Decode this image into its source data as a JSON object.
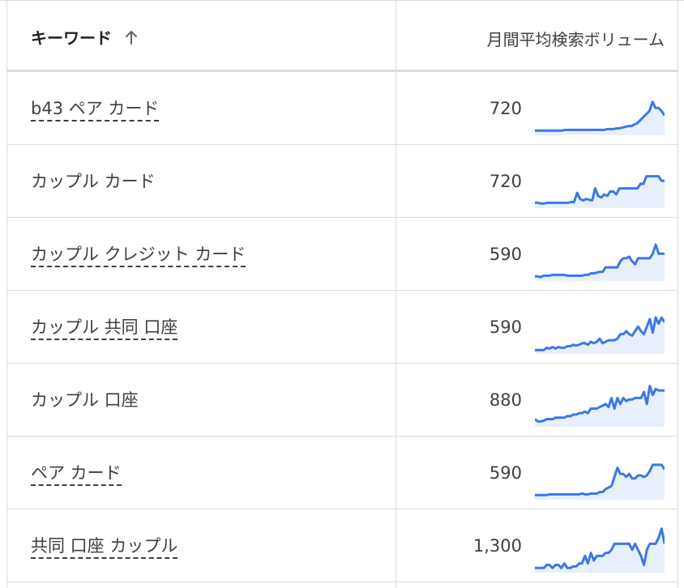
{
  "header": {
    "keyword_label": "キーワード",
    "volume_label": "月間平均検索ボリューム",
    "sort_icon": "arrow-up-icon"
  },
  "colors": {
    "trend_line": "#3b78e7",
    "trend_fill": "#e8f0fe",
    "border": "#dadce0"
  },
  "rows": [
    {
      "keyword": "b43 ペア カード",
      "volume": "720",
      "linked": true,
      "trend": [
        4,
        4,
        4,
        4,
        4,
        4,
        4,
        4,
        4,
        4,
        5,
        5,
        5,
        5,
        5,
        5,
        5,
        5,
        5,
        5,
        5,
        5,
        5,
        5,
        6,
        6,
        6,
        7,
        7,
        8,
        9,
        10,
        10,
        12,
        14,
        18,
        22,
        26,
        30,
        42,
        34,
        34,
        30,
        24
      ]
    },
    {
      "keyword": "カップル カード",
      "volume": "720",
      "linked": false,
      "trend": [
        5,
        5,
        4,
        4,
        5,
        5,
        5,
        5,
        5,
        5,
        5,
        5,
        6,
        6,
        18,
        10,
        8,
        10,
        9,
        8,
        24,
        14,
        12,
        16,
        14,
        20,
        20,
        16,
        24,
        24,
        24,
        24,
        24,
        24,
        24,
        30,
        30,
        40,
        40,
        40,
        40,
        40,
        34,
        34
      ]
    },
    {
      "keyword": "カップル クレジット カード",
      "volume": "590",
      "linked": true,
      "trend": [
        4,
        4,
        3,
        5,
        5,
        5,
        6,
        6,
        6,
        6,
        6,
        5,
        5,
        5,
        5,
        5,
        5,
        6,
        6,
        8,
        8,
        9,
        10,
        10,
        16,
        16,
        16,
        16,
        16,
        24,
        28,
        28,
        30,
        24,
        20,
        28,
        28,
        28,
        28,
        28,
        34,
        46,
        34,
        34,
        34
      ]
    },
    {
      "keyword": "カップル 共同 口座",
      "volume": "590",
      "linked": true,
      "trend": [
        3,
        3,
        3,
        3,
        6,
        5,
        7,
        5,
        7,
        6,
        6,
        8,
        8,
        10,
        9,
        10,
        12,
        12,
        10,
        14,
        12,
        14,
        18,
        12,
        14,
        16,
        16,
        16,
        18,
        24,
        24,
        28,
        24,
        22,
        28,
        34,
        28,
        24,
        34,
        44,
        26,
        46,
        38,
        46,
        40
      ]
    },
    {
      "keyword": "カップル 口座",
      "volume": "880",
      "linked": false,
      "trend": [
        8,
        5,
        5,
        6,
        8,
        8,
        8,
        10,
        10,
        10,
        10,
        12,
        12,
        14,
        14,
        16,
        16,
        18,
        16,
        22,
        22,
        22,
        24,
        26,
        28,
        24,
        36,
        22,
        36,
        28,
        36,
        32,
        34,
        34,
        36,
        36,
        36,
        44,
        28,
        52,
        40,
        48,
        46,
        46,
        46
      ]
    },
    {
      "keyword": "ペア カード",
      "volume": "590",
      "linked": true,
      "trend": [
        4,
        4,
        4,
        4,
        4,
        5,
        5,
        5,
        5,
        5,
        5,
        5,
        5,
        5,
        5,
        5,
        6,
        5,
        5,
        6,
        6,
        6,
        8,
        8,
        12,
        14,
        16,
        28,
        40,
        32,
        32,
        28,
        32,
        26,
        26,
        30,
        30,
        28,
        30,
        36,
        44,
        44,
        44,
        44,
        38
      ]
    },
    {
      "keyword": "共同 口座 カップル",
      "volume": "1,300",
      "linked": true,
      "trend": [
        4,
        4,
        4,
        4,
        8,
        8,
        4,
        8,
        8,
        4,
        10,
        4,
        4,
        6,
        6,
        10,
        10,
        20,
        10,
        24,
        14,
        20,
        20,
        20,
        24,
        24,
        28,
        36,
        36,
        36,
        36,
        36,
        36,
        28,
        36,
        28,
        20,
        8,
        28,
        36,
        36,
        36,
        44,
        56,
        36
      ]
    }
  ]
}
